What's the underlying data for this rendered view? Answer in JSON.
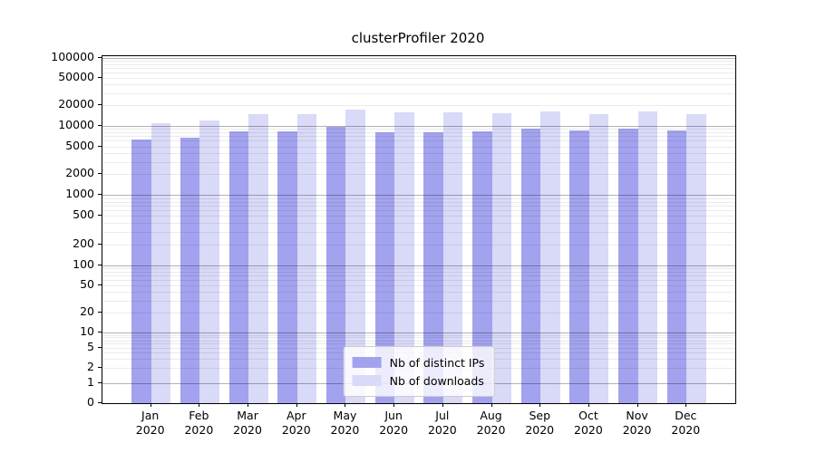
{
  "title": "clusterProfiler 2020",
  "chart_data": {
    "type": "bar",
    "title": "clusterProfiler 2020",
    "categories": [
      "Jan",
      "Feb",
      "Mar",
      "Apr",
      "May",
      "Jun",
      "Jul",
      "Aug",
      "Sep",
      "Oct",
      "Nov",
      "Dec"
    ],
    "category_year": "2020",
    "series": [
      {
        "name": "Nb of distinct IPs",
        "color": "#a2a2ee",
        "values": [
          6300,
          6600,
          8200,
          8200,
          9500,
          7900,
          7900,
          8200,
          8900,
          8600,
          8900,
          8400
        ]
      },
      {
        "name": "Nb of downloads",
        "color": "#d9d9f8",
        "values": [
          10800,
          12000,
          14700,
          14500,
          17000,
          15600,
          15700,
          15100,
          16000,
          14900,
          16000,
          14500
        ]
      }
    ],
    "yscale": "symlog",
    "ylim": [
      0,
      100000
    ],
    "ytick_values": [
      0,
      1,
      2,
      5,
      10,
      20,
      50,
      100,
      200,
      500,
      1000,
      2000,
      5000,
      10000,
      20000,
      50000,
      100000
    ],
    "ytick_labels": [
      "0",
      "1",
      "2",
      "5",
      "10",
      "20",
      "50",
      "100",
      "200",
      "500",
      "1000",
      "2000",
      "5000",
      "10000",
      "20000",
      "50000",
      "100000"
    ],
    "xlabel": "",
    "ylabel": "",
    "grid": "major-and-minor",
    "legend_position": "lower center"
  }
}
